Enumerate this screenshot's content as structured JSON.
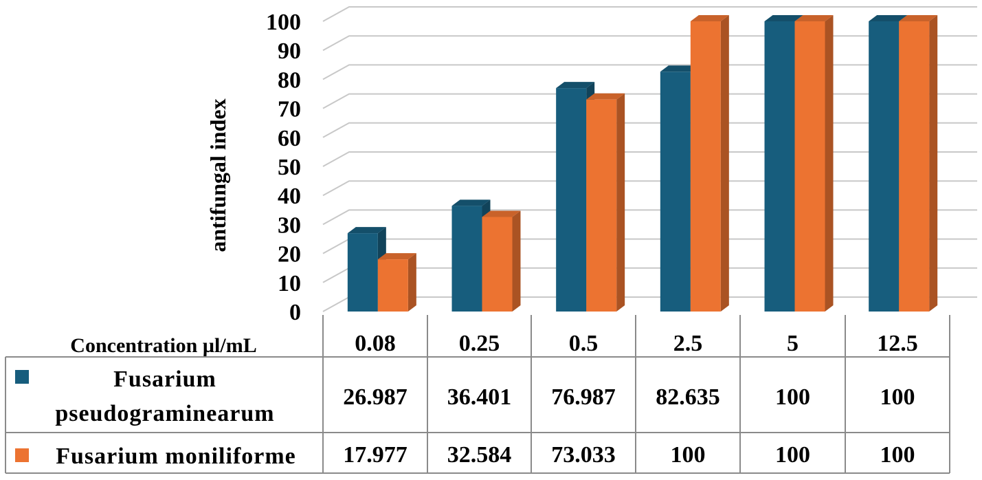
{
  "chart_data": {
    "type": "bar",
    "ylabel": "antifungal index",
    "xlabel": "Concentration µl/mL",
    "ylim": [
      0,
      100
    ],
    "yticks": [
      0,
      10,
      20,
      30,
      40,
      50,
      60,
      70,
      80,
      90,
      100
    ],
    "categories": [
      "0.08",
      "0.25",
      "0.5",
      "2.5",
      "5",
      "12.5"
    ],
    "series": [
      {
        "name": "Fusarium pseudograminearum",
        "name_lines": [
          "Fusarium",
          "pseudograminearum"
        ],
        "color": "#175d7d",
        "values": [
          26.987,
          36.401,
          76.987,
          82.635,
          100,
          100
        ],
        "labels": [
          "26.987",
          "36.401",
          "76.987",
          "82.635",
          "100",
          "100"
        ]
      },
      {
        "name": "Fusarium moniliforme",
        "name_lines": [
          "Fusarium moniliforme"
        ],
        "color": "#ec7331",
        "values": [
          17.977,
          32.584,
          73.033,
          100,
          100,
          100
        ],
        "labels": [
          "17.977",
          "32.584",
          "73.033",
          "100",
          "100",
          "100"
        ]
      }
    ],
    "grid": true,
    "data_table": true
  }
}
